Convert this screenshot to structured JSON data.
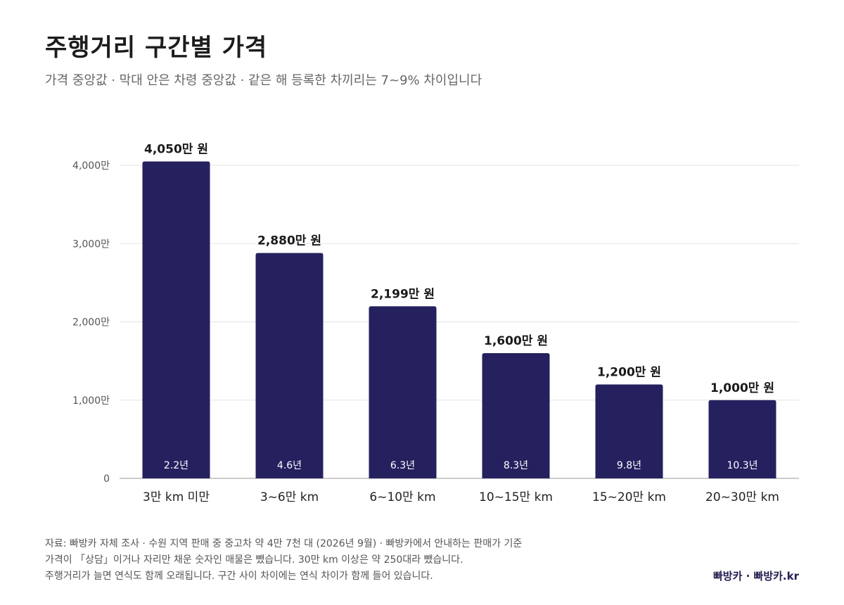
{
  "title": "주행거리 구간별 가격",
  "subtitle": "가격 중앙값 · 막대 안은 차령 중앙값 · 같은 해 등록한 차끼리는 7~9% 차이입니다",
  "chart_data": {
    "type": "bar",
    "categories": [
      "3만 km 미만",
      "3~6만 km",
      "6~10만 km",
      "10~15만 km",
      "15~20만 km",
      "20~30만 km"
    ],
    "values": [
      4050,
      2880,
      2199,
      1600,
      1200,
      1000
    ],
    "value_labels": [
      "4,050만 원",
      "2,880만 원",
      "2,199만 원",
      "1,600만 원",
      "1,200만 원",
      "1,000만 원"
    ],
    "inner_labels": [
      "2.2년",
      "4.6년",
      "6.3년",
      "8.3년",
      "9.8년",
      "10.3년"
    ],
    "y_ticks": [
      0,
      1000,
      2000,
      3000,
      4000
    ],
    "y_tick_labels": [
      "0",
      "1,000만",
      "2,000만",
      "3,000만",
      "4,000만"
    ],
    "ylim": [
      0,
      4000
    ],
    "grid": true,
    "bar_color": "#25215f"
  },
  "footer": {
    "lines": [
      "자료: 빠방카 자체 조사 · 수원 지역 판매 중 중고차 약 4만 7천 대 (2026년 9월) · 빠방카에서 안내하는 판매가 기준",
      "가격이 「상담」이거나 자리만 채운 숫자인 매물은 뺐습니다. 30만 km 이상은 약 250대라 뺐습니다.",
      "주행거리가 늘면 연식도 함께 오래됩니다. 구간 사이 차이에는 연식 차이가 함께 들어 있습니다."
    ],
    "brand": "빠방카 · 빠방카.kr"
  }
}
